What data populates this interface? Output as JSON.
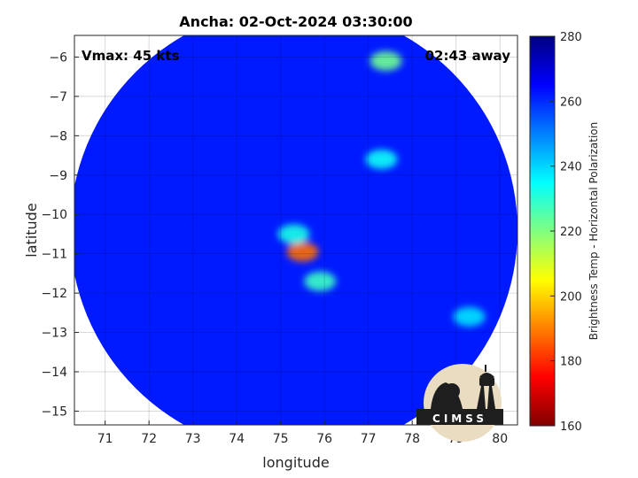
{
  "chart_data": {
    "type": "heatmap",
    "title": "Ancha: 02-Oct-2024 03:30:00",
    "xlabel": "longitude",
    "ylabel": "latitude",
    "xlim": [
      70.3,
      80.4
    ],
    "ylim": [
      -15.35,
      -5.45
    ],
    "x_ticks": [
      71,
      72,
      73,
      74,
      75,
      76,
      77,
      78,
      79,
      80
    ],
    "y_ticks": [
      -6,
      -7,
      -8,
      -9,
      -10,
      -11,
      -12,
      -13,
      -14,
      -15
    ],
    "colorbar": {
      "label": "Brightness Temp - Horizontal Polarization",
      "range": [
        160,
        280
      ],
      "ticks": [
        280,
        260,
        240,
        220,
        200,
        180,
        160
      ],
      "colormap": "jet"
    },
    "swath": {
      "center_lon": 75.3,
      "center_lat": -10.4,
      "radius_deg": 5.1
    },
    "background_tb": 262,
    "features": [
      {
        "name": "eyewall core",
        "lon": 75.5,
        "lat": -10.95,
        "tb": 188
      },
      {
        "name": "inner eyewall",
        "lon": 75.3,
        "lat": -10.5,
        "tb": 232
      },
      {
        "name": "southern band",
        "lon": 75.9,
        "lat": -11.7,
        "tb": 228
      },
      {
        "name": "eastern band",
        "lon": 77.3,
        "lat": -8.6,
        "tb": 234
      },
      {
        "name": "northeast cell",
        "lon": 77.4,
        "lat": -6.1,
        "tb": 222
      },
      {
        "name": "southeast band",
        "lon": 79.3,
        "lat": -12.6,
        "tb": 238
      }
    ],
    "grid": true,
    "annotations": {
      "vmax": "Vmax: 45 kts",
      "time_away": "02:43 away"
    }
  },
  "logo": {
    "text": "CIMSS"
  }
}
